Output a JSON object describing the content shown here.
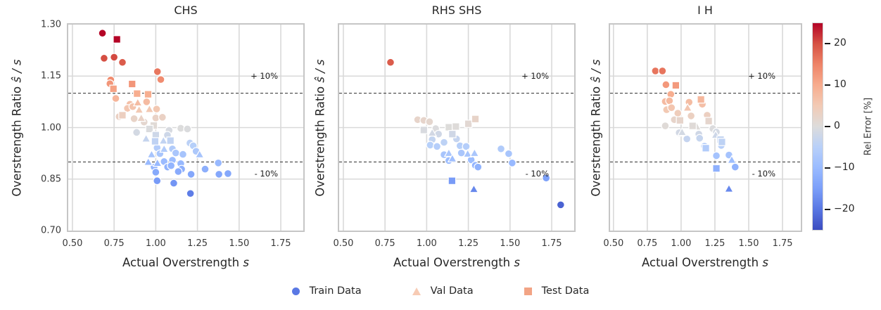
{
  "figure": {
    "background": "#ffffff"
  },
  "annotations": {
    "upper": "+ 10%",
    "lower": "- 10%"
  },
  "legend": {
    "items": [
      {
        "label": "Train Data",
        "marker": "circle",
        "color": "#5a78e4"
      },
      {
        "label": "Val Data",
        "marker": "triangle",
        "color": "#f7cbb4"
      },
      {
        "label": "Test Data",
        "marker": "square",
        "color": "#f2a485"
      }
    ]
  },
  "colorbar": {
    "label": "Rel Error [%]",
    "ticks": [
      20,
      10,
      0,
      -10,
      -20
    ],
    "vmin": -25,
    "vmax": 25,
    "colormap": "coolwarm",
    "stops": [
      "#3b4cc0",
      "#5977e3",
      "#7b9ff9",
      "#9abbff",
      "#b8d0f9",
      "#dddcdb",
      "#f2cab5",
      "#f7ac8e",
      "#ee8468",
      "#d65244",
      "#b40426"
    ]
  },
  "chart_data": [
    {
      "type": "scatter",
      "title": "CHS",
      "xlabel_main": "Actual Overstrength",
      "xlabel_symbol": "s",
      "ylabel_main": "Overstrength Ratio",
      "ylabel_symbol": "ŝ / s",
      "xlim": [
        0.475,
        1.885
      ],
      "ylim": [
        0.7,
        1.3
      ],
      "xticks": [
        0.5,
        0.75,
        1.0,
        1.25,
        1.5,
        1.75
      ],
      "xtick_labels": [
        "0.50",
        "0.75",
        "1.00",
        "1.25",
        "1.50",
        "1.75"
      ],
      "yticks": [
        1.3,
        1.15,
        1.0,
        0.85,
        0.7
      ],
      "ytick_labels": [
        "1.30",
        "1.15",
        "1.00",
        "0.85",
        "0.70"
      ],
      "ygrid": [
        1.15,
        1.0,
        0.85
      ],
      "show_ytick_labels": true,
      "ref_lines": [
        1.1,
        0.9
      ],
      "color_rule": "rel_error_pct = (y - 1) * 100, colormap coolwarm, clim [-25, 25]",
      "series": [
        {
          "name": "Train Data",
          "marker": "circle",
          "points": [
            [
              0.68,
              1.275
            ],
            [
              0.69,
              1.202
            ],
            [
              0.75,
              1.205
            ],
            [
              0.8,
              1.19
            ],
            [
              1.01,
              1.163
            ],
            [
              1.03,
              1.14
            ],
            [
              0.73,
              1.139
            ],
            [
              0.725,
              1.128
            ],
            [
              0.76,
              1.085
            ],
            [
              0.845,
              1.068
            ],
            [
              0.945,
              1.075
            ],
            [
              0.83,
              1.056
            ],
            [
              0.862,
              1.061
            ],
            [
              1.005,
              1.054
            ],
            [
              0.78,
              1.032
            ],
            [
              0.87,
              1.026
            ],
            [
              0.93,
              1.016
            ],
            [
              1.0,
              1.028
            ],
            [
              1.04,
              1.03
            ],
            [
              0.885,
              0.986
            ],
            [
              1.08,
              0.992
            ],
            [
              1.15,
              0.998
            ],
            [
              1.19,
              0.996
            ],
            [
              1.07,
              0.978
            ],
            [
              1.008,
              0.941
            ],
            [
              1.1,
              0.938
            ],
            [
              1.025,
              0.924
            ],
            [
              1.12,
              0.926
            ],
            [
              1.163,
              0.922
            ],
            [
              1.205,
              0.955
            ],
            [
              1.225,
              0.947
            ],
            [
              1.242,
              0.931
            ],
            [
              1.05,
              0.901
            ],
            [
              1.1,
              0.905
            ],
            [
              1.15,
              0.895
            ],
            [
              0.99,
              0.885
            ],
            [
              1.0,
              0.87
            ],
            [
              1.071,
              0.885
            ],
            [
              1.092,
              0.889
            ],
            [
              1.155,
              0.879
            ],
            [
              1.135,
              0.872
            ],
            [
              1.008,
              0.845
            ],
            [
              1.108,
              0.838
            ],
            [
              1.212,
              0.864
            ],
            [
              1.296,
              0.879
            ],
            [
              1.379,
              0.864
            ],
            [
              1.433,
              0.866
            ],
            [
              1.375,
              0.897
            ],
            [
              1.208,
              0.808
            ]
          ]
        },
        {
          "name": "Val Data",
          "marker": "triangle",
          "points": [
            [
              0.892,
              1.073
            ],
            [
              0.9,
              1.052
            ],
            [
              0.962,
              1.054
            ],
            [
              0.913,
              1.028
            ],
            [
              0.942,
              0.968
            ],
            [
              1.046,
              0.962
            ],
            [
              1.05,
              0.938
            ],
            [
              0.975,
              0.922
            ],
            [
              0.955,
              0.9
            ],
            [
              1.01,
              0.897
            ],
            [
              1.263,
              0.922
            ]
          ]
        },
        {
          "name": "Test Data",
          "marker": "square",
          "points": [
            [
              0.767,
              1.257
            ],
            [
              0.746,
              1.113
            ],
            [
              0.858,
              1.127
            ],
            [
              0.888,
              1.099
            ],
            [
              0.954,
              1.097
            ],
            [
              0.8,
              1.036
            ],
            [
              0.988,
              1.006
            ],
            [
              0.962,
              0.996
            ],
            [
              1.0,
              0.978
            ],
            [
              0.996,
              0.96
            ],
            [
              1.088,
              0.962
            ]
          ]
        }
      ]
    },
    {
      "type": "scatter",
      "title": "RHS SHS",
      "xlabel_main": "Actual Overstrength",
      "xlabel_symbol": "s",
      "ylabel_main": "Overstrength Ratio",
      "ylabel_symbol": "ŝ / s",
      "xlim": [
        0.475,
        1.885
      ],
      "ylim": [
        0.7,
        1.3
      ],
      "xticks": [
        0.5,
        0.75,
        1.0,
        1.25,
        1.5,
        1.75
      ],
      "xtick_labels": [
        "0.50",
        "0.75",
        "1.00",
        "1.25",
        "1.50",
        "1.75"
      ],
      "yticks": [
        1.3,
        1.15,
        1.0,
        0.85,
        0.7
      ],
      "ytick_labels": [
        "1.30",
        "1.15",
        "1.00",
        "0.85",
        "0.70"
      ],
      "ygrid": [
        1.15,
        1.0,
        0.85
      ],
      "show_ytick_labels": false,
      "ref_lines": [
        1.1,
        0.9
      ],
      "color_rule": "rel_error_pct = (y - 1) * 100, colormap coolwarm, clim [-25, 25]",
      "series": [
        {
          "name": "Train Data",
          "marker": "circle",
          "points": [
            [
              0.783,
              1.19
            ],
            [
              0.946,
              1.023
            ],
            [
              0.983,
              1.021
            ],
            [
              1.017,
              1.017
            ],
            [
              1.054,
              0.997
            ],
            [
              1.071,
              0.981
            ],
            [
              1.033,
              0.965
            ],
            [
              1.021,
              0.949
            ],
            [
              1.062,
              0.945
            ],
            [
              1.104,
              0.957
            ],
            [
              1.179,
              0.967
            ],
            [
              1.2,
              0.947
            ],
            [
              1.237,
              0.945
            ],
            [
              1.104,
              0.921
            ],
            [
              1.133,
              0.904
            ],
            [
              1.208,
              0.926
            ],
            [
              1.267,
              0.906
            ],
            [
              1.292,
              0.89
            ],
            [
              1.308,
              0.885
            ],
            [
              1.446,
              0.938
            ],
            [
              1.492,
              0.924
            ],
            [
              1.513,
              0.897
            ],
            [
              1.717,
              0.853
            ],
            [
              1.804,
              0.775
            ]
          ]
        },
        {
          "name": "Val Data",
          "marker": "triangle",
          "points": [
            [
              1.033,
              0.985
            ],
            [
              1.133,
              0.926
            ],
            [
              1.154,
              0.91
            ],
            [
              1.246,
              0.924
            ],
            [
              1.287,
              0.926
            ],
            [
              1.283,
              0.821
            ]
          ]
        },
        {
          "name": "Test Data",
          "marker": "square",
          "points": [
            [
              0.983,
              0.993
            ],
            [
              1.133,
              1.001
            ],
            [
              1.175,
              1.003
            ],
            [
              1.25,
              1.011
            ],
            [
              1.292,
              1.025
            ],
            [
              1.154,
              0.981
            ],
            [
              1.152,
              0.845
            ]
          ]
        }
      ]
    },
    {
      "type": "scatter",
      "title": "I H",
      "xlabel_main": "Actual Overstrength",
      "xlabel_symbol": "s",
      "ylabel_main": "Overstrength Ratio",
      "ylabel_symbol": "ŝ / s",
      "xlim": [
        0.475,
        1.885
      ],
      "ylim": [
        0.7,
        1.3
      ],
      "xticks": [
        0.5,
        0.75,
        1.0,
        1.25,
        1.5,
        1.75
      ],
      "xtick_labels": [
        "0.50",
        "0.75",
        "1.00",
        "1.25",
        "1.50",
        "1.75"
      ],
      "yticks": [
        1.3,
        1.15,
        1.0,
        0.85,
        0.7
      ],
      "ytick_labels": [
        "1.30",
        "1.15",
        "1.00",
        "0.85",
        "0.70"
      ],
      "ygrid": [
        1.15,
        1.0,
        0.85
      ],
      "show_ytick_labels": false,
      "ref_lines": [
        1.1,
        0.9
      ],
      "color_rule": "rel_error_pct = (y - 1) * 100, colormap coolwarm, clim [-25, 25]",
      "series": [
        {
          "name": "Train Data",
          "marker": "circle",
          "points": [
            [
              0.81,
              1.165
            ],
            [
              0.862,
              1.165
            ],
            [
              0.888,
              1.125
            ],
            [
              0.924,
              1.097
            ],
            [
              0.883,
              1.076
            ],
            [
              0.914,
              1.078
            ],
            [
              0.893,
              1.052
            ],
            [
              0.929,
              1.058
            ],
            [
              0.976,
              1.042
            ],
            [
              1.059,
              1.074
            ],
            [
              1.157,
              1.068
            ],
            [
              1.074,
              1.034
            ],
            [
              0.95,
              1.023
            ],
            [
              1.193,
              1.036
            ],
            [
              0.883,
              1.005
            ],
            [
              0.986,
              0.985
            ],
            [
              1.131,
              0.981
            ],
            [
              1.235,
              0.997
            ],
            [
              1.261,
              0.987
            ],
            [
              1.043,
              0.967
            ],
            [
              1.137,
              0.969
            ],
            [
              1.173,
              0.946
            ],
            [
              1.297,
              0.948
            ],
            [
              1.261,
              0.918
            ],
            [
              1.354,
              0.92
            ],
            [
              1.4,
              0.885
            ]
          ]
        },
        {
          "name": "Val Data",
          "marker": "triangle",
          "points": [
            [
              1.048,
              1.058
            ],
            [
              1.116,
              1.003
            ],
            [
              1.007,
              0.987
            ],
            [
              1.256,
              0.979
            ],
            [
              1.375,
              0.906
            ],
            [
              1.354,
              0.822
            ]
          ]
        },
        {
          "name": "Test Data",
          "marker": "square",
          "points": [
            [
              0.961,
              1.123
            ],
            [
              1.147,
              1.082
            ],
            [
              0.992,
              1.021
            ],
            [
              1.085,
              1.005
            ],
            [
              1.204,
              1.019
            ],
            [
              1.292,
              0.965
            ],
            [
              1.183,
              0.94
            ],
            [
              1.302,
              0.958
            ],
            [
              1.261,
              0.881
            ]
          ]
        }
      ]
    }
  ]
}
